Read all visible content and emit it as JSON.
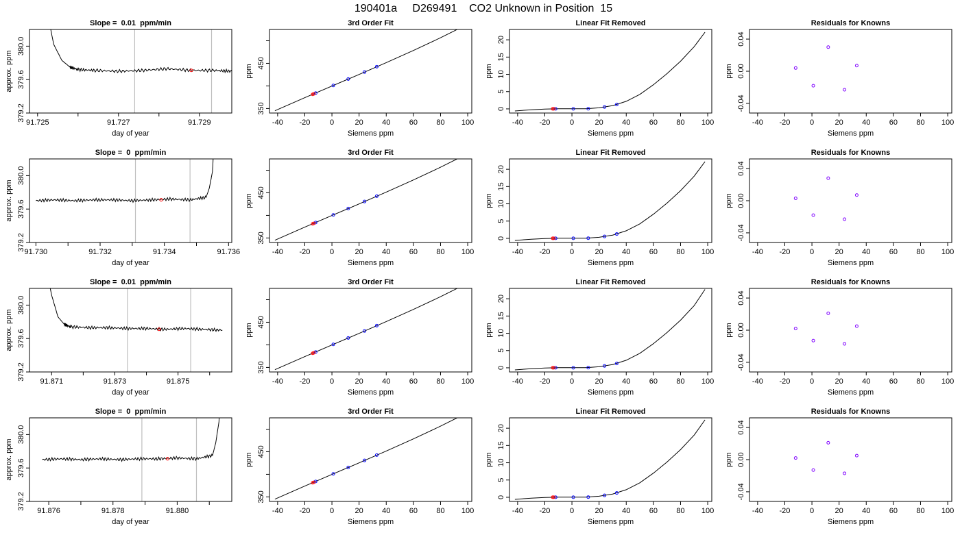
{
  "figure": {
    "title": "190401a     D269491    CO2 Unknown in Position  15"
  },
  "colors": {
    "line": "#000000",
    "known_point": "#0000ff",
    "unknown_point": "#ff0000",
    "residual_point": "#7f00ff",
    "window_line": "#bebebe"
  },
  "chart_data": [
    {
      "type": "line",
      "row": 1,
      "title": "Slope =  0.01  ppm/min",
      "xlabel": "day of year",
      "ylabel": "approx. ppm",
      "xlim": [
        91.7248,
        91.7298
      ],
      "ylim": [
        379.2,
        380.2
      ],
      "xticks": [
        91.725,
        91.726,
        91.727,
        91.728,
        91.729
      ],
      "xtick_labels": [
        "91.725",
        "",
        "91.727",
        "",
        "91.729"
      ],
      "yticks": [
        379.2,
        379.6,
        380.0
      ],
      "yticklabels": [
        "379.2",
        "379.6",
        "380.0"
      ],
      "window_lines": [
        91.7274,
        91.7293
      ],
      "x": [
        91.7252,
        91.7254,
        91.7256,
        91.7258,
        91.726,
        91.7264,
        91.727,
        91.7276,
        91.7282,
        91.7288,
        91.7294,
        91.7298
      ],
      "y": [
        380.5,
        380.02,
        379.83,
        379.75,
        379.72,
        379.71,
        379.7,
        379.71,
        379.73,
        379.71,
        379.71,
        379.7
      ],
      "unknown_point": {
        "x": 91.7288,
        "y": 379.71
      }
    },
    {
      "type": "line",
      "row": 1,
      "title": "3rd Order Fit",
      "xlabel": "Siemens ppm",
      "ylabel": "ppm",
      "xlim": [
        -46,
        103
      ],
      "ylim": [
        340,
        525
      ],
      "xticks": [
        -40,
        -20,
        0,
        20,
        40,
        60,
        80,
        100
      ],
      "yticks": [
        350,
        400,
        450,
        500
      ],
      "ytick_labels": [
        "350",
        "",
        "450",
        ""
      ],
      "x": [
        -42,
        -20,
        0,
        20,
        40,
        60,
        80,
        98
      ],
      "y": [
        345,
        373.9,
        399.7,
        425.4,
        451.6,
        478.5,
        506.7,
        533.7
      ],
      "known_points": {
        "x": [
          -12,
          1,
          12,
          24,
          33
        ],
        "y": [
          384.1,
          401,
          415.2,
          430.7,
          442.6
        ]
      },
      "unknown_points": {
        "x": [
          -14.2,
          -13.4
        ],
        "y": [
          381.3,
          382.3
        ]
      }
    },
    {
      "type": "line",
      "row": 1,
      "title": "Linear Fit Removed",
      "xlabel": "Siemens ppm",
      "ylabel": "ppm",
      "xlim": [
        -46,
        103
      ],
      "ylim": [
        -1.2,
        23
      ],
      "xticks": [
        -40,
        -20,
        0,
        20,
        40,
        60,
        80,
        100
      ],
      "yticks": [
        0,
        5,
        10,
        15,
        20
      ],
      "x": [
        -42,
        -30,
        -20,
        -10,
        0,
        10,
        20,
        30,
        40,
        50,
        60,
        70,
        80,
        90,
        98
      ],
      "y": [
        -0.6,
        -0.25,
        -0.05,
        0.03,
        0.02,
        0.05,
        0.3,
        0.95,
        2.2,
        4.2,
        7.0,
        10.2,
        13.8,
        18.0,
        22.2
      ],
      "known_points": {
        "x": [
          -12,
          1,
          12,
          24,
          33
        ],
        "y": [
          0.02,
          0.02,
          0.05,
          0.55,
          1.25
        ]
      },
      "unknown_points": {
        "x": [
          -14.2,
          -13.4
        ],
        "y": [
          0.02,
          0.02
        ]
      }
    },
    {
      "type": "scatter",
      "row": 1,
      "title": "Residuals for Knowns",
      "xlabel": "Siemens ppm",
      "ylabel": "ppm",
      "xlim": [
        -46,
        103
      ],
      "ylim": [
        -0.052,
        0.052
      ],
      "xticks": [
        -40,
        -20,
        0,
        20,
        40,
        60,
        80,
        100
      ],
      "yticks": [
        -0.04,
        0.0,
        0.04
      ],
      "yticklabels": [
        "-0.04",
        "0.00",
        "0.04"
      ],
      "x": [
        -12,
        1,
        12,
        24,
        33
      ],
      "y": [
        0.004,
        -0.018,
        0.03,
        -0.023,
        0.007
      ]
    },
    {
      "type": "line",
      "row": 2,
      "title": "Slope =  0  ppm/min",
      "xlabel": "day of year",
      "ylabel": "approx. ppm",
      "xlim": [
        91.7298,
        91.7361
      ],
      "ylim": [
        379.2,
        380.2
      ],
      "xticks": [
        91.73,
        91.731,
        91.732,
        91.733,
        91.734,
        91.735,
        91.736
      ],
      "xtick_labels": [
        "91.730",
        "",
        "91.732",
        "",
        "91.734",
        "",
        "91.736"
      ],
      "yticks": [
        379.2,
        379.6,
        380.0
      ],
      "yticklabels": [
        "379.2",
        "379.6",
        "380.0"
      ],
      "window_lines": [
        91.7331,
        91.7348
      ],
      "x": [
        91.73,
        91.7306,
        91.7312,
        91.7318,
        91.7324,
        91.733,
        91.7336,
        91.7342,
        91.7348,
        91.7353,
        91.7354,
        91.7355,
        91.73556
      ],
      "y": [
        379.7,
        379.71,
        379.7,
        379.71,
        379.71,
        379.7,
        379.71,
        379.72,
        379.71,
        379.74,
        379.85,
        380.05,
        380.5
      ],
      "unknown_point": {
        "x": 91.7339,
        "y": 379.71
      }
    },
    {
      "type": "line",
      "row": 2,
      "title": "3rd Order Fit",
      "xlabel": "Siemens ppm",
      "ylabel": "ppm",
      "xlim": [
        -46,
        103
      ],
      "ylim": [
        340,
        525
      ],
      "xticks": [
        -40,
        -20,
        0,
        20,
        40,
        60,
        80,
        100
      ],
      "yticks": [
        350,
        400,
        450,
        500
      ],
      "ytick_labels": [
        "350",
        "",
        "450",
        ""
      ],
      "x": [
        -42,
        -20,
        0,
        20,
        40,
        60,
        80,
        98
      ],
      "y": [
        345,
        373.9,
        399.7,
        425.4,
        451.6,
        478.5,
        506.7,
        533.7
      ],
      "known_points": {
        "x": [
          -12,
          1,
          12,
          24,
          33
        ],
        "y": [
          384.1,
          401,
          415.2,
          430.7,
          442.6
        ]
      },
      "unknown_points": {
        "x": [
          -14.2,
          -13.4
        ],
        "y": [
          381.3,
          382.3
        ]
      }
    },
    {
      "type": "line",
      "row": 2,
      "title": "Linear Fit Removed",
      "xlabel": "Siemens ppm",
      "ylabel": "ppm",
      "xlim": [
        -46,
        103
      ],
      "ylim": [
        -1.2,
        23
      ],
      "xticks": [
        -40,
        -20,
        0,
        20,
        40,
        60,
        80,
        100
      ],
      "yticks": [
        0,
        5,
        10,
        15,
        20
      ],
      "x": [
        -42,
        -30,
        -20,
        -10,
        0,
        10,
        20,
        30,
        40,
        50,
        60,
        70,
        80,
        90,
        98
      ],
      "y": [
        -0.6,
        -0.25,
        -0.05,
        0.03,
        0.02,
        0.05,
        0.3,
        0.95,
        2.2,
        4.2,
        7.0,
        10.2,
        13.8,
        18.0,
        22.2
      ],
      "known_points": {
        "x": [
          -12,
          1,
          12,
          24,
          33
        ],
        "y": [
          0.02,
          0.02,
          0.05,
          0.55,
          1.25
        ]
      },
      "unknown_points": {
        "x": [
          -14.2,
          -13.4
        ],
        "y": [
          0.02,
          0.02
        ]
      }
    },
    {
      "type": "scatter",
      "row": 2,
      "title": "Residuals for Knowns",
      "xlabel": "Siemens ppm",
      "ylabel": "ppm",
      "xlim": [
        -46,
        103
      ],
      "ylim": [
        -0.052,
        0.052
      ],
      "xticks": [
        -40,
        -20,
        0,
        20,
        40,
        60,
        80,
        100
      ],
      "yticks": [
        -0.04,
        0.0,
        0.04
      ],
      "yticklabels": [
        "-0.04",
        "0.00",
        "0.04"
      ],
      "x": [
        -12,
        1,
        12,
        24,
        33
      ],
      "y": [
        0.003,
        -0.018,
        0.028,
        -0.023,
        0.007
      ]
    },
    {
      "type": "line",
      "row": 3,
      "title": "Slope =  0.01  ppm/min",
      "xlabel": "day of year",
      "ylabel": "approx. ppm",
      "xlim": [
        91.8703,
        91.8767
      ],
      "ylim": [
        379.2,
        380.2
      ],
      "xticks": [
        91.871,
        91.872,
        91.873,
        91.874,
        91.875,
        91.876
      ],
      "xtick_labels": [
        "91.871",
        "",
        "91.873",
        "",
        "91.875",
        ""
      ],
      "yticks": [
        379.2,
        379.6,
        380.0
      ],
      "yticklabels": [
        "379.2",
        "379.6",
        "380.0"
      ],
      "window_lines": [
        91.8734,
        91.8754
      ],
      "x": [
        91.8708,
        91.871,
        91.8712,
        91.8714,
        91.8716,
        91.8722,
        91.8728,
        91.8734,
        91.874,
        91.8746,
        91.8752,
        91.8758,
        91.8764
      ],
      "y": [
        380.5,
        380.12,
        379.86,
        379.77,
        379.74,
        379.73,
        379.73,
        379.72,
        379.72,
        379.71,
        379.72,
        379.71,
        379.7
      ],
      "unknown_point": {
        "x": 91.8744,
        "y": 379.71
      }
    },
    {
      "type": "line",
      "row": 3,
      "title": "3rd Order Fit",
      "xlabel": "Siemens ppm",
      "ylabel": "ppm",
      "xlim": [
        -46,
        103
      ],
      "ylim": [
        340,
        525
      ],
      "xticks": [
        -40,
        -20,
        0,
        20,
        40,
        60,
        80,
        100
      ],
      "yticks": [
        350,
        400,
        450,
        500
      ],
      "ytick_labels": [
        "350",
        "",
        "450",
        ""
      ],
      "x": [
        -42,
        -20,
        0,
        20,
        40,
        60,
        80,
        98
      ],
      "y": [
        345,
        373.9,
        399.7,
        425.4,
        451.6,
        478.5,
        506.7,
        533.7
      ],
      "known_points": {
        "x": [
          -12,
          1,
          12,
          24,
          33
        ],
        "y": [
          384.1,
          401,
          415.2,
          430.7,
          442.6
        ]
      },
      "unknown_points": {
        "x": [
          -14.2,
          -13.4
        ],
        "y": [
          381.3,
          382.3
        ]
      }
    },
    {
      "type": "line",
      "row": 3,
      "title": "Linear Fit Removed",
      "xlabel": "Siemens ppm",
      "ylabel": "ppm",
      "xlim": [
        -46,
        103
      ],
      "ylim": [
        -1.2,
        23
      ],
      "xticks": [
        -40,
        -20,
        0,
        20,
        40,
        60,
        80,
        100
      ],
      "yticks": [
        0,
        5,
        10,
        15,
        20
      ],
      "x": [
        -42,
        -30,
        -20,
        -10,
        0,
        10,
        20,
        30,
        40,
        50,
        60,
        70,
        80,
        90,
        98
      ],
      "y": [
        -0.6,
        -0.25,
        -0.05,
        0.03,
        0.02,
        0.05,
        0.3,
        0.95,
        2.2,
        4.2,
        7.0,
        10.2,
        13.8,
        18.0,
        22.7
      ],
      "known_points": {
        "x": [
          -12,
          1,
          12,
          24,
          33
        ],
        "y": [
          0.02,
          0.02,
          0.05,
          0.55,
          1.25
        ]
      },
      "unknown_points": {
        "x": [
          -14.2,
          -13.4
        ],
        "y": [
          0.02,
          0.02
        ]
      }
    },
    {
      "type": "scatter",
      "row": 3,
      "title": "Residuals for Knowns",
      "xlabel": "Siemens ppm",
      "ylabel": "ppm",
      "xlim": [
        -46,
        103
      ],
      "ylim": [
        -0.052,
        0.052
      ],
      "xticks": [
        -40,
        -20,
        0,
        20,
        40,
        60,
        80,
        100
      ],
      "yticks": [
        -0.04,
        0.0,
        0.04
      ],
      "yticklabels": [
        "-0.04",
        "0.00",
        "0.04"
      ],
      "x": [
        -12,
        1,
        12,
        24,
        33
      ],
      "y": [
        0.002,
        -0.013,
        0.021,
        -0.017,
        0.005
      ]
    },
    {
      "type": "line",
      "row": 4,
      "title": "Slope =  0  ppm/min",
      "xlabel": "day of year",
      "ylabel": "approx. ppm",
      "xlim": [
        91.8754,
        91.8817
      ],
      "ylim": [
        379.2,
        380.2
      ],
      "xticks": [
        91.876,
        91.877,
        91.878,
        91.879,
        91.88,
        91.881
      ],
      "xtick_labels": [
        "91.876",
        "",
        "91.878",
        "",
        "91.880",
        ""
      ],
      "yticks": [
        379.2,
        379.6,
        380.0
      ],
      "yticklabels": [
        "379.2",
        "379.6",
        "380.0"
      ],
      "window_lines": [
        91.8789,
        91.8806
      ],
      "x": [
        91.8758,
        91.8764,
        91.877,
        91.8776,
        91.8782,
        91.8788,
        91.8794,
        91.88,
        91.8806,
        91.8811,
        91.8812,
        91.8813,
        91.88135
      ],
      "y": [
        379.7,
        379.71,
        379.7,
        379.71,
        379.7,
        379.71,
        379.71,
        379.72,
        379.71,
        379.75,
        379.9,
        380.15,
        380.5
      ],
      "unknown_point": {
        "x": 91.8797,
        "y": 379.71
      }
    },
    {
      "type": "line",
      "row": 4,
      "title": "3rd Order Fit",
      "xlabel": "Siemens ppm",
      "ylabel": "ppm",
      "xlim": [
        -46,
        103
      ],
      "ylim": [
        340,
        525
      ],
      "xticks": [
        -40,
        -20,
        0,
        20,
        40,
        60,
        80,
        100
      ],
      "yticks": [
        350,
        400,
        450,
        500
      ],
      "ytick_labels": [
        "350",
        "",
        "450",
        ""
      ],
      "x": [
        -42,
        -20,
        0,
        20,
        40,
        60,
        80,
        98
      ],
      "y": [
        345,
        373.9,
        399.7,
        425.4,
        451.6,
        478.5,
        506.7,
        533.7
      ],
      "known_points": {
        "x": [
          -12,
          1,
          12,
          24,
          33
        ],
        "y": [
          384.1,
          401,
          415.2,
          430.7,
          442.6
        ]
      },
      "unknown_points": {
        "x": [
          -14.2,
          -13.4
        ],
        "y": [
          381.3,
          382.3
        ]
      }
    },
    {
      "type": "line",
      "row": 4,
      "title": "Linear Fit Removed",
      "xlabel": "Siemens ppm",
      "ylabel": "ppm",
      "xlim": [
        -46,
        103
      ],
      "ylim": [
        -1.2,
        23
      ],
      "xticks": [
        -40,
        -20,
        0,
        20,
        40,
        60,
        80,
        100
      ],
      "yticks": [
        0,
        5,
        10,
        15,
        20
      ],
      "x": [
        -42,
        -30,
        -20,
        -10,
        0,
        10,
        20,
        30,
        40,
        50,
        60,
        70,
        80,
        90,
        98
      ],
      "y": [
        -0.6,
        -0.25,
        -0.05,
        0.03,
        0.02,
        0.05,
        0.3,
        0.95,
        2.2,
        4.2,
        7.0,
        10.2,
        13.8,
        18.0,
        22.4
      ],
      "known_points": {
        "x": [
          -12,
          1,
          12,
          24,
          33
        ],
        "y": [
          0.02,
          0.02,
          0.05,
          0.55,
          1.25
        ]
      },
      "unknown_points": {
        "x": [
          -14.2,
          -13.4
        ],
        "y": [
          0.02,
          0.02
        ]
      }
    },
    {
      "type": "scatter",
      "row": 4,
      "title": "Residuals for Knowns",
      "xlabel": "Siemens ppm",
      "ylabel": "ppm",
      "xlim": [
        -46,
        103
      ],
      "ylim": [
        -0.052,
        0.052
      ],
      "xticks": [
        -40,
        -20,
        0,
        20,
        40,
        60,
        80,
        100
      ],
      "yticks": [
        -0.04,
        0.0,
        0.04
      ],
      "yticklabels": [
        "-0.04",
        "0.00",
        "0.04"
      ],
      "x": [
        -12,
        1,
        12,
        24,
        33
      ],
      "y": [
        0.002,
        -0.013,
        0.021,
        -0.017,
        0.005
      ]
    }
  ]
}
